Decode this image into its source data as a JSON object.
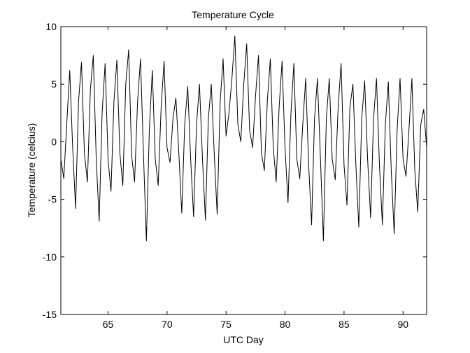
{
  "chart_data": {
    "type": "line",
    "title": "Temperature Cycle",
    "xlabel": "UTC Day",
    "ylabel": "Temperature (celcius)",
    "xlim": [
      61,
      92
    ],
    "ylim": [
      -15,
      10
    ],
    "xticks": [
      65,
      70,
      75,
      80,
      85,
      90
    ],
    "yticks": [
      -15,
      -10,
      -5,
      0,
      5,
      10
    ],
    "grid": false,
    "colors": {
      "line": "#000000",
      "axes": "#000000",
      "background": "#ffffff"
    },
    "series": [
      {
        "x": [
          61.0,
          61.25,
          61.5,
          61.75,
          62.0,
          62.25,
          62.5,
          62.75,
          63.0,
          63.25,
          63.5,
          63.75,
          64.0,
          64.25,
          64.5,
          64.75,
          65.0,
          65.25,
          65.5,
          65.75,
          66.0,
          66.25,
          66.5,
          66.75,
          67.0,
          67.25,
          67.5,
          67.75,
          68.0,
          68.25,
          68.5,
          68.75,
          69.0,
          69.25,
          69.5,
          69.75,
          70.0,
          70.25,
          70.5,
          70.75,
          71.0,
          71.25,
          71.5,
          71.75,
          72.0,
          72.25,
          72.5,
          72.75,
          73.0,
          73.25,
          73.5,
          73.75,
          74.0,
          74.25,
          74.5,
          74.75,
          75.0,
          75.25,
          75.5,
          75.75,
          76.0,
          76.25,
          76.5,
          76.75,
          77.0,
          77.25,
          77.5,
          77.75,
          78.0,
          78.25,
          78.5,
          78.75,
          79.0,
          79.25,
          79.5,
          79.75,
          80.0,
          80.25,
          80.5,
          80.75,
          81.0,
          81.25,
          81.5,
          81.75,
          82.0,
          82.25,
          82.5,
          82.75,
          83.0,
          83.25,
          83.5,
          83.75,
          84.0,
          84.25,
          84.5,
          84.75,
          85.0,
          85.25,
          85.5,
          85.75,
          86.0,
          86.25,
          86.5,
          86.75,
          87.0,
          87.25,
          87.5,
          87.75,
          88.0,
          88.25,
          88.5,
          88.75,
          89.0,
          89.25,
          89.5,
          89.75,
          90.0,
          90.25,
          90.5,
          90.75,
          91.0,
          91.25,
          91.5,
          91.75,
          92.0
        ],
        "y": [
          -1.5,
          -3.2,
          1.5,
          6.2,
          -0.5,
          -5.8,
          3.5,
          6.9,
          -1.0,
          -3.5,
          4.5,
          7.5,
          -1.5,
          -6.9,
          2.5,
          6.8,
          -1.5,
          -4.3,
          3.5,
          7.1,
          -1.0,
          -3.8,
          5.0,
          8.0,
          -1.2,
          -3.5,
          3.5,
          7.2,
          -1.0,
          -8.6,
          1.0,
          6.2,
          -1.5,
          -3.8,
          3.0,
          7.0,
          -0.5,
          -1.8,
          2.0,
          3.8,
          -1.0,
          -6.2,
          1.5,
          4.8,
          -1.5,
          -6.5,
          1.5,
          5.0,
          -1.5,
          -6.8,
          2.0,
          5.0,
          -1.0,
          -6.3,
          3.5,
          7.2,
          0.5,
          2.5,
          5.5,
          9.2,
          1.5,
          0.0,
          5.0,
          8.5,
          1.0,
          -0.5,
          4.0,
          7.5,
          -1.0,
          -2.5,
          3.5,
          7.2,
          -0.5,
          -3.5,
          3.0,
          7.0,
          -0.5,
          -5.3,
          2.5,
          6.8,
          -1.5,
          -3.2,
          1.5,
          5.5,
          -2.0,
          -7.2,
          2.0,
          5.5,
          -1.5,
          -8.6,
          2.0,
          5.5,
          -1.5,
          -3.3,
          3.0,
          6.8,
          -2.0,
          -5.5,
          3.0,
          5.0,
          -2.0,
          -7.4,
          2.0,
          5.3,
          -1.5,
          -6.6,
          2.0,
          5.5,
          -2.0,
          -7.2,
          1.5,
          5.2,
          -2.5,
          -8.0,
          1.0,
          5.5,
          -1.5,
          -3.0,
          1.0,
          5.5,
          -2.5,
          -6.1,
          1.5,
          2.8,
          -0.5
        ]
      }
    ]
  }
}
